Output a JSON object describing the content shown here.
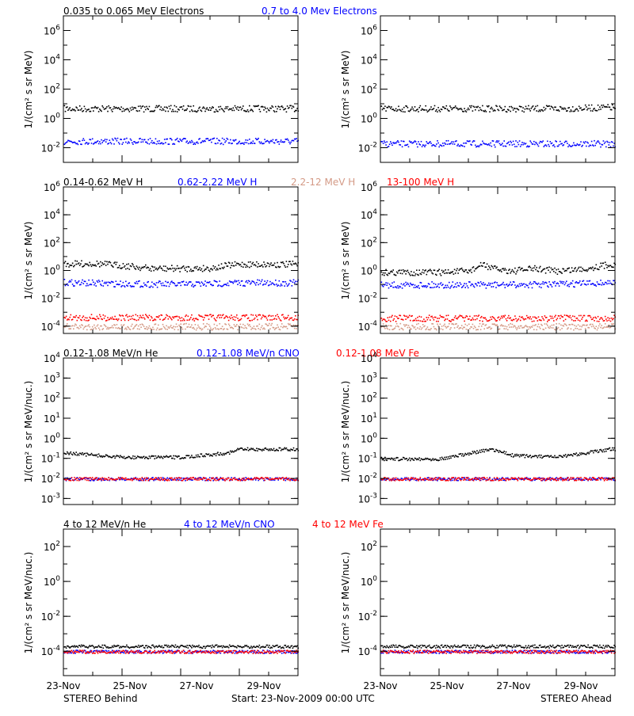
{
  "colors": {
    "black": "#000000",
    "blue": "#0000ff",
    "brown": "#d49a86",
    "red": "#ff0000"
  },
  "footer": {
    "left": "STEREO Behind",
    "center": "Start: 23-Nov-2009 00:00 UTC",
    "right": "STEREO Ahead"
  },
  "x_ticks": [
    "23-Nov",
    "25-Nov",
    "27-Nov",
    "29-Nov"
  ],
  "rows": [
    {
      "ylabel": "1/(cm² s sr MeV)",
      "legend": [
        {
          "text": "0.035 to 0.065 MeV Electrons",
          "color": "#000000"
        },
        {
          "text": "0.7 to 4.0 Mev Electrons",
          "color": "#0000ff"
        }
      ]
    },
    {
      "ylabel": "1/(cm² s sr MeV)",
      "legend": [
        {
          "text": "0.14-0.62 MeV H",
          "color": "#000000"
        },
        {
          "text": "0.62-2.22 MeV H",
          "color": "#0000ff"
        },
        {
          "text": "2.2-12 MeV H",
          "color": "#d49a86"
        },
        {
          "text": "13-100 MeV H",
          "color": "#ff0000"
        }
      ]
    },
    {
      "ylabel": "1/(cm² s sr MeV/nuc.)",
      "legend": [
        {
          "text": "0.12-1.08 MeV/n He",
          "color": "#000000"
        },
        {
          "text": "0.12-1.08 MeV/n CNO",
          "color": "#0000ff"
        },
        {
          "text": "0.12-1.08 MeV Fe",
          "color": "#ff0000"
        }
      ]
    },
    {
      "ylabel": "1/(cm² s sr MeV/nuc.)",
      "legend": [
        {
          "text": "4 to 12 MeV/n He",
          "color": "#000000"
        },
        {
          "text": "4 to 12 MeV/n CNO",
          "color": "#0000ff"
        },
        {
          "text": "4 to 12 MeV Fe",
          "color": "#ff0000"
        }
      ]
    }
  ],
  "chart_data": [
    {
      "type": "scatter",
      "spacecraft": "STEREO Behind",
      "yscale": "log",
      "ylim": [
        0.001,
        10000000
      ],
      "xlim_days": [
        23,
        31
      ],
      "yticks": [
        {
          "base": "10",
          "exp": "-2"
        },
        {
          "base": "10",
          "exp": "0"
        },
        {
          "base": "10",
          "exp": "2"
        },
        {
          "base": "10",
          "exp": "4"
        },
        {
          "base": "10",
          "exp": "6"
        }
      ],
      "series": [
        {
          "name": "0.035 to 0.065 MeV Electrons",
          "color": "#000000",
          "x": [
            23,
            25,
            27,
            29,
            31
          ],
          "y": [
            5,
            5,
            5,
            5,
            5
          ]
        },
        {
          "name": "0.7 to 4.0 Mev Electrons",
          "color": "#0000ff",
          "x": [
            23,
            25,
            27,
            29,
            31
          ],
          "y": [
            0.03,
            0.03,
            0.03,
            0.03,
            0.03
          ]
        }
      ]
    },
    {
      "type": "scatter",
      "spacecraft": "STEREO Ahead",
      "yscale": "log",
      "ylim": [
        0.001,
        10000000
      ],
      "xlim_days": [
        23,
        31
      ],
      "yticks": [
        {
          "base": "10",
          "exp": "-2"
        },
        {
          "base": "10",
          "exp": "0"
        },
        {
          "base": "10",
          "exp": "2"
        },
        {
          "base": "10",
          "exp": "4"
        },
        {
          "base": "10",
          "exp": "6"
        }
      ],
      "series": [
        {
          "name": "0.035 to 0.065 MeV Electrons",
          "color": "#000000",
          "x": [
            23,
            25,
            27,
            29,
            31
          ],
          "y": [
            5,
            5,
            5,
            5,
            6
          ]
        },
        {
          "name": "0.7 to 4.0 Mev Electrons",
          "color": "#0000ff",
          "x": [
            23,
            25,
            27,
            29,
            31
          ],
          "y": [
            0.02,
            0.02,
            0.02,
            0.02,
            0.02
          ]
        }
      ]
    },
    {
      "type": "scatter",
      "spacecraft": "STEREO Behind",
      "yscale": "log",
      "ylim": [
        3e-05,
        1000000
      ],
      "xlim_days": [
        23,
        31
      ],
      "yticks": [
        {
          "base": "10",
          "exp": "-4"
        },
        {
          "base": "10",
          "exp": "-2"
        },
        {
          "base": "10",
          "exp": "0"
        },
        {
          "base": "10",
          "exp": "2"
        },
        {
          "base": "10",
          "exp": "4"
        },
        {
          "base": "10",
          "exp": "6"
        }
      ],
      "series": [
        {
          "name": "0.14-0.62 MeV H",
          "color": "#000000",
          "x": [
            23,
            24,
            25,
            26,
            27,
            28,
            28.6,
            29,
            30,
            31
          ],
          "y": [
            3,
            3.5,
            2.5,
            1.5,
            1.5,
            1.6,
            2.5,
            3,
            3,
            3
          ]
        },
        {
          "name": "0.62-2.22 MeV H",
          "color": "#0000ff",
          "x": [
            23,
            25,
            27,
            29,
            31
          ],
          "y": [
            0.15,
            0.12,
            0.11,
            0.14,
            0.14
          ]
        },
        {
          "name": "2.2-12 MeV H",
          "color": "#d49a86",
          "x": [
            23,
            25,
            27,
            29,
            31
          ],
          "y": [
            0.0001,
            0.0001,
            0.0001,
            0.0001,
            0.0001
          ]
        },
        {
          "name": "13-100 MeV H",
          "color": "#ff0000",
          "x": [
            23,
            25,
            27,
            29,
            31
          ],
          "y": [
            0.00045,
            0.00045,
            0.00045,
            0.00045,
            0.00045
          ]
        }
      ]
    },
    {
      "type": "scatter",
      "spacecraft": "STEREO Ahead",
      "yscale": "log",
      "ylim": [
        3e-05,
        1000000
      ],
      "xlim_days": [
        23,
        31
      ],
      "yticks": [
        {
          "base": "10",
          "exp": "-4"
        },
        {
          "base": "10",
          "exp": "-2"
        },
        {
          "base": "10",
          "exp": "0"
        },
        {
          "base": "10",
          "exp": "2"
        },
        {
          "base": "10",
          "exp": "4"
        },
        {
          "base": "10",
          "exp": "6"
        }
      ],
      "series": [
        {
          "name": "0.14-0.62 MeV H",
          "color": "#000000",
          "x": [
            23,
            24,
            25,
            26,
            26.5,
            26.8,
            27.5,
            28.2,
            29,
            30,
            30.8
          ],
          "y": [
            0.8,
            0.8,
            0.8,
            1,
            3,
            1.5,
            1,
            1.5,
            1,
            1.5,
            3
          ]
        },
        {
          "name": "0.62-2.22 MeV H",
          "color": "#0000ff",
          "x": [
            23,
            25,
            27,
            29,
            31
          ],
          "y": [
            0.1,
            0.1,
            0.1,
            0.11,
            0.15
          ]
        },
        {
          "name": "2.2-12 MeV H",
          "color": "#d49a86",
          "x": [
            23,
            25,
            27,
            29,
            31
          ],
          "y": [
            0.0001,
            0.0001,
            0.0001,
            0.0001,
            0.0001
          ]
        },
        {
          "name": "13-100 MeV H",
          "color": "#ff0000",
          "x": [
            23,
            25,
            27,
            29,
            31
          ],
          "y": [
            0.0004,
            0.0004,
            0.0004,
            0.0004,
            0.0004
          ]
        }
      ]
    },
    {
      "type": "scatter",
      "spacecraft": "STEREO Behind",
      "yscale": "log",
      "ylim": [
        0.0005,
        10000
      ],
      "xlim_days": [
        23,
        31
      ],
      "yticks": [
        {
          "base": "10",
          "exp": "-3"
        },
        {
          "base": "10",
          "exp": "-2"
        },
        {
          "base": "10",
          "exp": "-1"
        },
        {
          "base": "10",
          "exp": "0"
        },
        {
          "base": "10",
          "exp": "1"
        },
        {
          "base": "10",
          "exp": "2"
        },
        {
          "base": "10",
          "exp": "3"
        },
        {
          "base": "10",
          "exp": "4"
        }
      ],
      "series": [
        {
          "name": "0.12-1.08 MeV/n He",
          "color": "#000000",
          "x": [
            23,
            25,
            27,
            28.6,
            29,
            31
          ],
          "y": [
            0.2,
            0.12,
            0.12,
            0.2,
            0.3,
            0.3
          ]
        },
        {
          "name": "0.12-1.08 MeV/n CNO",
          "color": "#0000ff",
          "x": [
            23,
            25,
            27,
            29,
            31
          ],
          "y": [
            0.01,
            0.01,
            0.01,
            0.01,
            0.01
          ]
        },
        {
          "name": "0.12-1.08 MeV Fe",
          "color": "#ff0000",
          "x": [
            23,
            25,
            27,
            29,
            31
          ],
          "y": [
            0.01,
            0.01,
            0.01,
            0.01,
            0.01
          ]
        }
      ]
    },
    {
      "type": "scatter",
      "spacecraft": "STEREO Ahead",
      "yscale": "log",
      "ylim": [
        0.0005,
        10000
      ],
      "xlim_days": [
        23,
        31
      ],
      "yticks": [
        {
          "base": "10",
          "exp": "-3"
        },
        {
          "base": "10",
          "exp": "-2"
        },
        {
          "base": "10",
          "exp": "-1"
        },
        {
          "base": "10",
          "exp": "0"
        },
        {
          "base": "10",
          "exp": "1"
        },
        {
          "base": "10",
          "exp": "2"
        },
        {
          "base": "10",
          "exp": "3"
        },
        {
          "base": "10",
          "exp": "4"
        }
      ],
      "series": [
        {
          "name": "0.12-1.08 MeV/n He",
          "color": "#000000",
          "x": [
            23,
            25,
            26.5,
            26.8,
            27.5,
            29,
            30.8
          ],
          "y": [
            0.1,
            0.1,
            0.25,
            0.3,
            0.15,
            0.12,
            0.3
          ]
        },
        {
          "name": "0.12-1.08 MeV/n CNO",
          "color": "#0000ff",
          "x": [
            23,
            25,
            27,
            29,
            31
          ],
          "y": [
            0.01,
            0.01,
            0.01,
            0.01,
            0.01
          ]
        },
        {
          "name": "0.12-1.08 MeV Fe",
          "color": "#ff0000",
          "x": [
            23,
            25,
            27,
            29,
            31
          ],
          "y": [
            0.01,
            0.01,
            0.01,
            0.01,
            0.01
          ]
        }
      ]
    },
    {
      "type": "scatter",
      "spacecraft": "STEREO Behind",
      "yscale": "log",
      "ylim": [
        4e-06,
        1000
      ],
      "xlim_days": [
        23,
        31
      ],
      "yticks": [
        {
          "base": "10",
          "exp": "-4"
        },
        {
          "base": "10",
          "exp": "-2"
        },
        {
          "base": "10",
          "exp": "0"
        },
        {
          "base": "10",
          "exp": "2"
        }
      ],
      "series": [
        {
          "name": "4 to 12 MeV/n He",
          "color": "#000000",
          "x": [
            23,
            25,
            27,
            29,
            31
          ],
          "y": [
            0.0002,
            0.0002,
            0.0002,
            0.0002,
            0.0002
          ]
        },
        {
          "name": "4 to 12 MeV/n CNO",
          "color": "#0000ff",
          "x": [
            23,
            25,
            27,
            29,
            31
          ],
          "y": [
            0.0001,
            0.0001,
            0.0001,
            0.0001,
            0.0001
          ]
        },
        {
          "name": "4 to 12 MeV Fe",
          "color": "#ff0000",
          "x": [
            23,
            25,
            27,
            29,
            31
          ],
          "y": [
            0.0001,
            0.0001,
            0.0001,
            0.0001,
            0.0001
          ]
        }
      ]
    },
    {
      "type": "scatter",
      "spacecraft": "STEREO Ahead",
      "yscale": "log",
      "ylim": [
        4e-06,
        1000
      ],
      "xlim_days": [
        23,
        31
      ],
      "yticks": [
        {
          "base": "10",
          "exp": "-4"
        },
        {
          "base": "10",
          "exp": "-2"
        },
        {
          "base": "10",
          "exp": "0"
        },
        {
          "base": "10",
          "exp": "2"
        }
      ],
      "series": [
        {
          "name": "4 to 12 MeV/n He",
          "color": "#000000",
          "x": [
            23,
            25,
            27,
            29,
            31
          ],
          "y": [
            0.0002,
            0.0002,
            0.0002,
            0.0002,
            0.0002
          ]
        },
        {
          "name": "4 to 12 MeV/n CNO",
          "color": "#0000ff",
          "x": [
            23,
            25,
            27,
            29,
            31
          ],
          "y": [
            0.0001,
            0.0001,
            0.0001,
            0.0001,
            0.0001
          ]
        },
        {
          "name": "4 to 12 MeV Fe",
          "color": "#ff0000",
          "x": [
            23,
            25,
            27,
            29,
            31
          ],
          "y": [
            0.0001,
            0.0001,
            0.0001,
            0.0001,
            0.0001
          ]
        }
      ]
    }
  ]
}
